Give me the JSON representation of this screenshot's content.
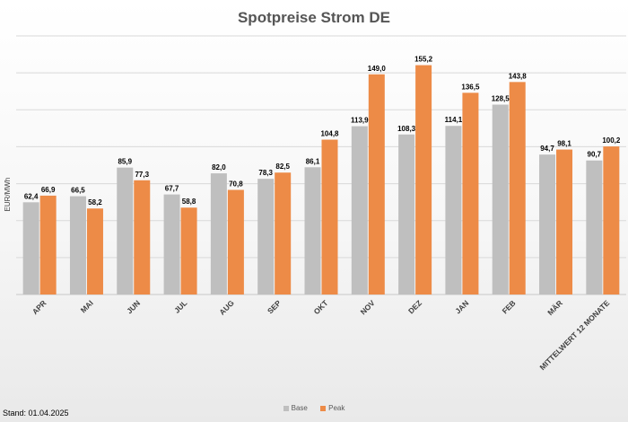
{
  "chart_data": {
    "type": "bar",
    "title": "Spotpreise Strom DE",
    "ylabel": "EUR/MWh",
    "xlabel": "",
    "ylim": [
      0,
      175
    ],
    "grid": true,
    "legend_position": "bottom",
    "categories": [
      "APR",
      "MAI",
      "JUN",
      "JUL",
      "AUG",
      "SEP",
      "OKT",
      "NOV",
      "DEZ",
      "JAN",
      "FEB",
      "MÄR",
      "MITTELWERT 12 MONATE"
    ],
    "series": [
      {
        "name": "Base",
        "color": "#bfbfbf",
        "values": [
          62.4,
          66.5,
          85.9,
          67.7,
          82.0,
          78.3,
          86.1,
          113.9,
          108.3,
          114.1,
          128.5,
          94.7,
          90.7
        ],
        "labels": [
          "62,4",
          "66,5",
          "85,9",
          "67,7",
          "82,0",
          "78,3",
          "86,1",
          "113,9",
          "108,3",
          "114,1",
          "128,5",
          "94,7",
          "90,7"
        ]
      },
      {
        "name": "Peak",
        "color": "#ed8b47",
        "values": [
          66.9,
          58.2,
          77.3,
          58.8,
          70.8,
          82.5,
          104.8,
          149.0,
          155.2,
          136.5,
          143.8,
          98.1,
          100.2
        ],
        "labels": [
          "66,9",
          "58,2",
          "77,3",
          "58,8",
          "70,8",
          "82,5",
          "104,8",
          "149,0",
          "155,2",
          "136,5",
          "143,8",
          "98,1",
          "100,2"
        ]
      }
    ]
  },
  "footer": {
    "stand": "Stand: 01.04.2025"
  }
}
